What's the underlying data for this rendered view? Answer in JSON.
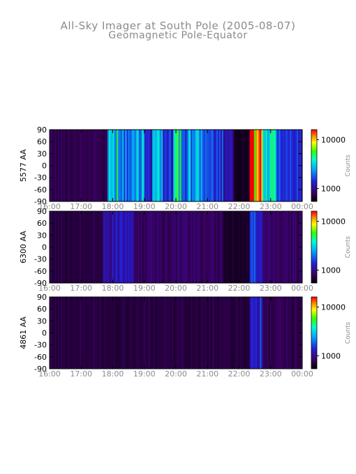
{
  "title": "All-Sky Imager at South Pole (2005-08-07)",
  "subtitle": "Geomagnetic Pole-Equator",
  "chart_data": [
    {
      "type": "heatmap",
      "ylabel": "5577 AA",
      "x_ticks": [
        "16:00",
        "17:00",
        "18:00",
        "19:00",
        "20:00",
        "21:00",
        "22:00",
        "23:00",
        "00:00"
      ],
      "y_ticks": [
        90,
        60,
        30,
        0,
        -30,
        -60,
        -90
      ],
      "ylim": [
        -90,
        90
      ],
      "colorbar": {
        "label": "Counts",
        "ticks": [
          10000,
          1000
        ],
        "tick_labels": [
          "10000",
          "1000"
        ]
      },
      "features": [
        {
          "start": "16:00",
          "end": "17:50",
          "level": 0.1
        },
        {
          "start": "17:50",
          "end": "18:10",
          "level": 0.55
        },
        {
          "start": "18:10",
          "end": "18:40",
          "level": 0.4
        },
        {
          "start": "18:40",
          "end": "19:00",
          "level": 0.45
        },
        {
          "start": "19:00",
          "end": "19:15",
          "level": 0.25
        },
        {
          "start": "19:15",
          "end": "19:35",
          "level": 0.45
        },
        {
          "start": "19:35",
          "end": "19:55",
          "level": 0.3
        },
        {
          "start": "19:55",
          "end": "20:10",
          "level": 0.6
        },
        {
          "start": "20:10",
          "end": "20:25",
          "level": 0.35
        },
        {
          "start": "20:25",
          "end": "20:50",
          "level": 0.45
        },
        {
          "start": "20:50",
          "end": "21:30",
          "level": 0.3
        },
        {
          "start": "21:30",
          "end": "21:50",
          "level": 0.2
        },
        {
          "start": "21:50",
          "end": "22:20",
          "level": 0.04
        },
        {
          "start": "22:20",
          "end": "22:45",
          "level": 0.95
        },
        {
          "start": "22:45",
          "end": "23:10",
          "level": 0.55
        },
        {
          "start": "23:10",
          "end": "24:00",
          "level": 0.3
        }
      ]
    },
    {
      "type": "heatmap",
      "ylabel": "6300 AA",
      "x_ticks": [
        "16:00",
        "17:00",
        "18:00",
        "19:00",
        "20:00",
        "21:00",
        "22:00",
        "23:00",
        "00:00"
      ],
      "y_ticks": [
        90,
        60,
        30,
        0,
        -30,
        -60,
        -90
      ],
      "ylim": [
        -90,
        90
      ],
      "colorbar": {
        "label": "Counts",
        "ticks": [
          10000,
          1000
        ],
        "tick_labels": [
          "10000",
          "1000"
        ]
      },
      "features": [
        {
          "start": "16:00",
          "end": "17:40",
          "level": 0.08
        },
        {
          "start": "17:40",
          "end": "18:40",
          "level": 0.22
        },
        {
          "start": "18:40",
          "end": "21:30",
          "level": 0.12
        },
        {
          "start": "21:30",
          "end": "22:20",
          "level": 0.05
        },
        {
          "start": "22:20",
          "end": "22:45",
          "level": 0.3
        },
        {
          "start": "22:45",
          "end": "24:00",
          "level": 0.12
        }
      ]
    },
    {
      "type": "heatmap",
      "ylabel": "4861 AA",
      "x_ticks": [
        "16:00",
        "17:00",
        "18:00",
        "19:00",
        "20:00",
        "21:00",
        "22:00",
        "23:00",
        "00:00"
      ],
      "y_ticks": [
        90,
        60,
        30,
        0,
        -30,
        -60,
        -90
      ],
      "ylim": [
        -90,
        90
      ],
      "colorbar": {
        "label": "Counts",
        "ticks": [
          10000,
          1000
        ],
        "tick_labels": [
          "10000",
          "1000"
        ]
      },
      "features": [
        {
          "start": "16:00",
          "end": "22:20",
          "level": 0.08
        },
        {
          "start": "22:20",
          "end": "22:45",
          "level": 0.28
        },
        {
          "start": "22:45",
          "end": "24:00",
          "level": 0.1
        }
      ]
    }
  ]
}
